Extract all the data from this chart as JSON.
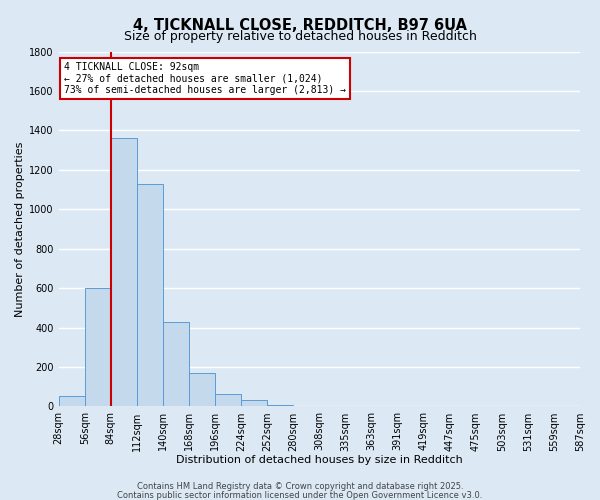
{
  "title": "4, TICKNALL CLOSE, REDDITCH, B97 6UA",
  "subtitle": "Size of property relative to detached houses in Redditch",
  "xlabel": "Distribution of detached houses by size in Redditch",
  "ylabel": "Number of detached properties",
  "bar_values": [
    55,
    600,
    1360,
    1130,
    430,
    170,
    65,
    35,
    10,
    0,
    0,
    0,
    0,
    0,
    0,
    0,
    0,
    0,
    0,
    0
  ],
  "bin_labels": [
    "28sqm",
    "56sqm",
    "84sqm",
    "112sqm",
    "140sqm",
    "168sqm",
    "196sqm",
    "224sqm",
    "252sqm",
    "280sqm",
    "308sqm",
    "335sqm",
    "363sqm",
    "391sqm",
    "419sqm",
    "447sqm",
    "475sqm",
    "503sqm",
    "531sqm",
    "559sqm",
    "587sqm"
  ],
  "bar_color": "#c5d9ed",
  "bar_edge_color": "#5b9bd5",
  "bar_width": 1.0,
  "ylim": [
    0,
    1800
  ],
  "yticks": [
    0,
    200,
    400,
    600,
    800,
    1000,
    1200,
    1400,
    1600,
    1800
  ],
  "vline_color": "#cc0000",
  "annotation_title": "4 TICKNALL CLOSE: 92sqm",
  "annotation_line1": "← 27% of detached houses are smaller (1,024)",
  "annotation_line2": "73% of semi-detached houses are larger (2,813) →",
  "annotation_box_facecolor": "#ffffff",
  "annotation_box_edgecolor": "#cc0000",
  "footer_line1": "Contains HM Land Registry data © Crown copyright and database right 2025.",
  "footer_line2": "Contains public sector information licensed under the Open Government Licence v3.0.",
  "background_color": "#dce9f5",
  "plot_bg_color": "#dce9f5",
  "grid_color": "#ffffff",
  "title_fontsize": 10.5,
  "subtitle_fontsize": 9,
  "axis_label_fontsize": 8,
  "tick_fontsize": 7,
  "footer_fontsize": 6
}
